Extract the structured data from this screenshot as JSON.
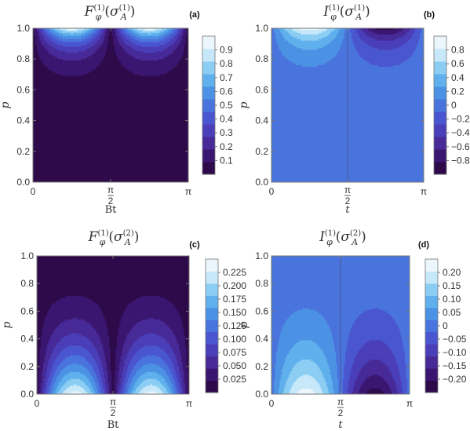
{
  "chart_data": [
    {
      "panel": "(a)",
      "type": "heatmap",
      "subtype": "filled-contour",
      "title": {
        "sym": "F",
        "sub": "φ",
        "sup": "(1)",
        "arg": "σ",
        "argSub": "A",
        "argSup": "(1)"
      },
      "xlabel": "Bt",
      "ylabel": "p",
      "xlim": [
        0,
        3.14159
      ],
      "ylim": [
        0,
        1
      ],
      "x_ticks": [
        "0",
        "π/2",
        "π"
      ],
      "y_ticks": [
        "0.0",
        "0.2",
        "0.4",
        "0.6",
        "0.8",
        "1.0"
      ],
      "colorbar_ticks": [
        "0.1",
        "0.2",
        "0.3",
        "0.4",
        "0.5",
        "0.6",
        "0.7",
        "0.8",
        "0.9"
      ],
      "levels": [
        0.05,
        0.15,
        0.25,
        0.35,
        0.45,
        0.55,
        0.65,
        0.75,
        0.85,
        0.95
      ],
      "colorbar_range": [
        0,
        1
      ],
      "field": {
        "kind": "lobes",
        "amplitude": 1.0,
        "sign_second_lobe": 1,
        "p_edge": "top",
        "exponent": 8
      }
    },
    {
      "panel": "(b)",
      "type": "heatmap",
      "subtype": "filled-contour",
      "title": {
        "sym": "I",
        "sub": "φ",
        "sup": "(1)",
        "arg": "σ",
        "argSub": "A",
        "argSup": "(1)"
      },
      "xlabel": "t",
      "ylabel": "p",
      "xlim": [
        0,
        3.14159
      ],
      "ylim": [
        0,
        1
      ],
      "x_ticks": [
        "0",
        "π/2",
        "π"
      ],
      "y_ticks": [
        "0.0",
        "0.2",
        "0.4",
        "0.6",
        "0.8",
        "1.0"
      ],
      "colorbar_ticks": [
        "0.8",
        "0.6",
        "0.4",
        "0.2",
        "0",
        "−0.2",
        "−0.4",
        "−0.6",
        "−0.8"
      ],
      "levels": [
        -0.9,
        -0.7,
        -0.5,
        -0.3,
        -0.1,
        0.1,
        0.3,
        0.5,
        0.7,
        0.9
      ],
      "colorbar_range": [
        -1,
        1
      ],
      "field": {
        "kind": "lobes",
        "amplitude": 1.0,
        "sign_second_lobe": -1,
        "p_edge": "top",
        "exponent": 8
      }
    },
    {
      "panel": "(c)",
      "type": "heatmap",
      "subtype": "filled-contour",
      "title": {
        "sym": "F",
        "sub": "φ",
        "sup": "(1)",
        "arg": "σ",
        "argSub": "A",
        "argSup": "(2)"
      },
      "xlabel": "Bt",
      "ylabel": "p",
      "xlim": [
        0,
        3.14159
      ],
      "ylim": [
        0,
        1
      ],
      "x_ticks": [
        "0",
        "π/2",
        "π"
      ],
      "y_ticks": [
        "0.0",
        "0.2",
        "0.4",
        "0.6",
        "0.8",
        "1.0"
      ],
      "colorbar_ticks": [
        "0.225",
        "0.200",
        "0.175",
        "0.150",
        "0.125",
        "0.100",
        "0.075",
        "0.050",
        "0.025"
      ],
      "levels": [
        0.0125,
        0.0375,
        0.0625,
        0.0875,
        0.1125,
        0.1375,
        0.1625,
        0.1875,
        0.2125,
        0.2375
      ],
      "colorbar_range": [
        0,
        0.25
      ],
      "field": {
        "kind": "lobes",
        "amplitude": 0.25,
        "sign_second_lobe": 1,
        "p_edge": "bottom",
        "exponent": 2.4
      }
    },
    {
      "panel": "(d)",
      "type": "heatmap",
      "subtype": "filled-contour",
      "title": {
        "sym": "I",
        "sub": "φ",
        "sup": "(1)",
        "arg": "σ",
        "argSub": "A",
        "argSup": "(2)"
      },
      "xlabel": "t",
      "ylabel": "p",
      "xlim": [
        0,
        3.14159
      ],
      "ylim": [
        0,
        1
      ],
      "x_ticks": [
        "0",
        "π/2",
        "π"
      ],
      "y_ticks": [
        "0.0",
        "0.2",
        "0.4",
        "0.6",
        "0.8",
        "1.0"
      ],
      "colorbar_ticks": [
        "0.20",
        "0.15",
        "0.10",
        "0.05",
        "0",
        "−0.05",
        "−0.10",
        "−0.15",
        "−0.20"
      ],
      "levels": [
        -0.225,
        -0.175,
        -0.125,
        -0.075,
        -0.025,
        0.025,
        0.075,
        0.125,
        0.175,
        0.225
      ],
      "colorbar_range": [
        -0.25,
        0.25
      ],
      "field": {
        "kind": "lobes",
        "amplitude": 0.25,
        "sign_second_lobe": -1,
        "p_edge": "bottom",
        "exponent": 2.4
      }
    }
  ],
  "colors": {
    "palette": [
      "#2e0a4a",
      "#3b1670",
      "#472a98",
      "#4a3fb8",
      "#4a56cf",
      "#4a74dd",
      "#4c92e4",
      "#5fb0ec",
      "#8ccdf3",
      "#c6e8f9",
      "#eaf6fc"
    ],
    "contour_line": "#2b2140",
    "frame": "#777777",
    "divider": "#444466"
  }
}
